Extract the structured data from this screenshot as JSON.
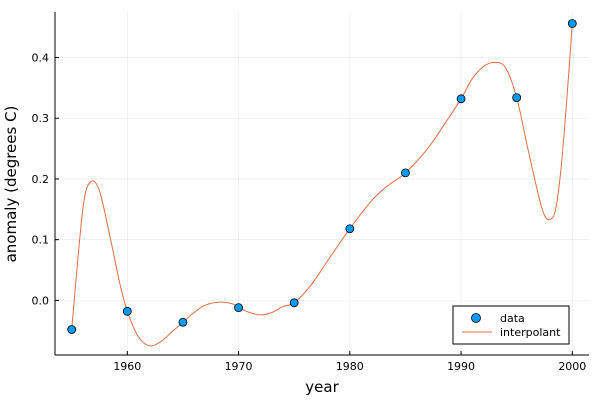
{
  "chart_data": {
    "type": "scatter",
    "xlabel": "year",
    "ylabel": "anomaly (degrees C)",
    "xlim": [
      1953.5,
      2001.5
    ],
    "ylim": [
      -0.09,
      0.475
    ],
    "x_ticks": [
      1960,
      1970,
      1980,
      1990,
      2000
    ],
    "y_ticks": [
      0.0,
      0.1,
      0.2,
      0.3,
      0.4
    ],
    "y_tick_labels": [
      "0.0",
      "0.1",
      "0.2",
      "0.3",
      "0.4"
    ],
    "grid": true,
    "legend_position": "bottom-right",
    "series": [
      {
        "name": "data",
        "kind": "scatter",
        "color": "#009AFA",
        "x": [
          1955,
          1960,
          1965,
          1970,
          1975,
          1980,
          1985,
          1990,
          1995,
          2000
        ],
        "y": [
          -0.048,
          -0.018,
          -0.036,
          -0.012,
          -0.004,
          0.118,
          0.21,
          0.332,
          0.334,
          0.456
        ]
      },
      {
        "name": "interpolant",
        "kind": "line",
        "color": "#E26F46",
        "x": [
          1955,
          1956,
          1956.7,
          1957.5,
          1958.5,
          1959.3,
          1960,
          1961,
          1962,
          1963,
          1964,
          1965,
          1966,
          1967,
          1968.3,
          1969.5,
          1970,
          1971,
          1972,
          1973,
          1974,
          1975,
          1976.5,
          1978,
          1980,
          1982,
          1983.5,
          1985,
          1987,
          1988.5,
          1990,
          1991,
          1992,
          1993,
          1994,
          1995,
          1996,
          1997,
          1997.5,
          1998,
          1998.5,
          1999,
          1999.5,
          2000
        ],
        "y": [
          -0.048,
          0.15,
          0.195,
          0.18,
          0.1,
          0.03,
          -0.018,
          -0.06,
          -0.075,
          -0.068,
          -0.052,
          -0.036,
          -0.02,
          -0.008,
          -0.003,
          -0.006,
          -0.012,
          -0.02,
          -0.024,
          -0.02,
          -0.01,
          -0.004,
          0.025,
          0.065,
          0.118,
          0.165,
          0.19,
          0.21,
          0.25,
          0.29,
          0.332,
          0.365,
          0.385,
          0.392,
          0.383,
          0.334,
          0.25,
          0.17,
          0.14,
          0.133,
          0.15,
          0.22,
          0.33,
          0.456
        ]
      }
    ]
  }
}
